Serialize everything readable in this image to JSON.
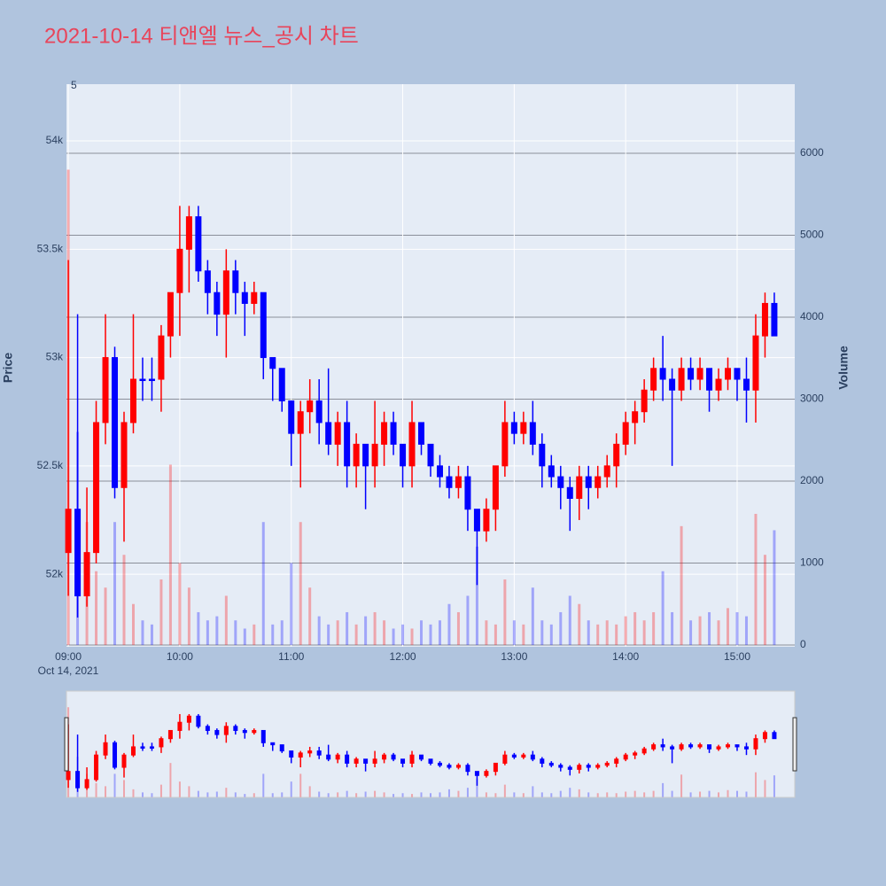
{
  "chart_data": {
    "type": "candlestick",
    "title": "2021-10-14 티앤엘 뉴스_공시 차트",
    "y_label": "Price",
    "y2_label": "Volume",
    "x_date_label": "Oct 14, 2021",
    "corner_label": "5",
    "increasing_color": "#ff0000",
    "decreasing_color": "#0000ff",
    "x": [
      "09:00",
      "09:05",
      "09:10",
      "09:15",
      "09:20",
      "09:25",
      "09:30",
      "09:35",
      "09:40",
      "09:45",
      "09:50",
      "09:55",
      "10:00",
      "10:05",
      "10:10",
      "10:15",
      "10:20",
      "10:25",
      "10:30",
      "10:35",
      "10:40",
      "10:45",
      "10:50",
      "10:55",
      "11:00",
      "11:05",
      "11:10",
      "11:15",
      "11:20",
      "11:25",
      "11:30",
      "11:35",
      "11:40",
      "11:45",
      "11:50",
      "11:55",
      "12:00",
      "12:05",
      "12:10",
      "12:15",
      "12:20",
      "12:25",
      "12:30",
      "12:35",
      "12:40",
      "12:45",
      "12:50",
      "12:55",
      "13:00",
      "13:05",
      "13:10",
      "13:15",
      "13:20",
      "13:25",
      "13:30",
      "13:35",
      "13:40",
      "13:45",
      "13:50",
      "13:55",
      "14:00",
      "14:05",
      "14:10",
      "14:15",
      "14:20",
      "14:25",
      "14:30",
      "14:35",
      "14:40",
      "14:45",
      "14:50",
      "14:55",
      "15:00",
      "15:05",
      "15:10",
      "15:15",
      "15:20"
    ],
    "open": [
      52100,
      52300,
      51900,
      52100,
      52700,
      53000,
      52400,
      52700,
      52900,
      52900,
      52900,
      53100,
      53300,
      53500,
      53650,
      53400,
      53300,
      53200,
      53400,
      53300,
      53250,
      53300,
      53000,
      52950,
      52800,
      52650,
      52750,
      52800,
      52700,
      52600,
      52700,
      52500,
      52600,
      52500,
      52600,
      52700,
      52600,
      52500,
      52700,
      52600,
      52500,
      52450,
      52400,
      52450,
      52300,
      52200,
      52300,
      52500,
      52700,
      52650,
      52700,
      52600,
      52500,
      52450,
      52400,
      52350,
      52450,
      52400,
      52450,
      52500,
      52600,
      52700,
      52750,
      52850,
      52950,
      52900,
      52850,
      52950,
      52900,
      52950,
      52850,
      52900,
      52950,
      52900,
      52850,
      53100,
      53250
    ],
    "high": [
      53450,
      53200,
      52400,
      52800,
      53200,
      53050,
      52750,
      53200,
      53000,
      53000,
      53150,
      53300,
      53700,
      53700,
      53700,
      53450,
      53350,
      53500,
      53450,
      53350,
      53350,
      53300,
      53000,
      52950,
      52800,
      52800,
      52900,
      52900,
      52950,
      52750,
      52800,
      52650,
      52600,
      52800,
      52750,
      52750,
      52600,
      52800,
      52700,
      52600,
      52550,
      52500,
      52500,
      52500,
      52300,
      52350,
      52500,
      52800,
      52750,
      52750,
      52800,
      52650,
      52550,
      52500,
      52450,
      52500,
      52500,
      52500,
      52550,
      52650,
      52750,
      52800,
      52900,
      53000,
      53100,
      52950,
      53000,
      53000,
      53000,
      52950,
      52950,
      53000,
      52950,
      53000,
      53200,
      53300,
      53300
    ],
    "low": [
      51900,
      51800,
      51850,
      52050,
      52600,
      52350,
      52150,
      52650,
      52800,
      52800,
      52750,
      53000,
      53100,
      53300,
      53350,
      53200,
      53100,
      53000,
      53200,
      53100,
      53200,
      52900,
      52800,
      52750,
      52500,
      52400,
      52650,
      52600,
      52550,
      52500,
      52400,
      52400,
      52300,
      52400,
      52500,
      52550,
      52400,
      52400,
      52550,
      52450,
      52400,
      52350,
      52350,
      52200,
      51950,
      52150,
      52200,
      52450,
      52600,
      52600,
      52550,
      52400,
      52400,
      52300,
      52200,
      52250,
      52300,
      52350,
      52400,
      52400,
      52550,
      52600,
      52700,
      52800,
      52800,
      52500,
      52800,
      52850,
      52850,
      52750,
      52800,
      52850,
      52800,
      52700,
      52700,
      53000,
      53100
    ],
    "close": [
      52300,
      51900,
      52100,
      52700,
      53000,
      52400,
      52700,
      52900,
      52900,
      52900,
      53100,
      53300,
      53500,
      53650,
      53400,
      53300,
      53200,
      53400,
      53300,
      53250,
      53300,
      53000,
      52950,
      52800,
      52650,
      52750,
      52800,
      52700,
      52600,
      52700,
      52500,
      52600,
      52500,
      52600,
      52700,
      52600,
      52500,
      52700,
      52600,
      52500,
      52450,
      52400,
      52450,
      52300,
      52200,
      52300,
      52500,
      52700,
      52650,
      52700,
      52600,
      52500,
      52450,
      52400,
      52350,
      52450,
      52400,
      52450,
      52500,
      52600,
      52700,
      52750,
      52850,
      52950,
      52900,
      52850,
      52950,
      52900,
      52950,
      52850,
      52900,
      52950,
      52900,
      52850,
      53100,
      53250,
      53100
    ],
    "volume": [
      5800,
      2600,
      1500,
      900,
      700,
      1500,
      1100,
      500,
      300,
      250,
      800,
      2200,
      1000,
      700,
      400,
      300,
      350,
      600,
      300,
      200,
      250,
      1500,
      250,
      300,
      1000,
      1500,
      700,
      350,
      250,
      300,
      400,
      250,
      350,
      400,
      300,
      200,
      250,
      200,
      300,
      250,
      300,
      500,
      400,
      600,
      1200,
      300,
      250,
      800,
      300,
      250,
      700,
      300,
      250,
      400,
      600,
      500,
      300,
      250,
      300,
      250,
      350,
      400,
      300,
      400,
      900,
      400,
      1450,
      300,
      350,
      400,
      300,
      450,
      400,
      350,
      1600,
      1100,
      1400
    ],
    "xlim": [
      "08:59",
      "15:31"
    ],
    "xticks": [
      "09:00",
      "10:00",
      "11:00",
      "12:00",
      "13:00",
      "14:00",
      "15:00"
    ],
    "ylim": [
      51665,
      54262
    ],
    "yticks": [
      {
        "value": 52000,
        "label": "52k"
      },
      {
        "value": 52500,
        "label": "52.5k"
      },
      {
        "value": 53000,
        "label": "53k"
      },
      {
        "value": 53500,
        "label": "53.5k"
      },
      {
        "value": 54000,
        "label": "54k"
      }
    ],
    "y2lim": [
      -22,
      6843
    ],
    "y2ticks": [
      0,
      1000,
      2000,
      3000,
      4000,
      5000,
      6000
    ],
    "grid": true
  }
}
